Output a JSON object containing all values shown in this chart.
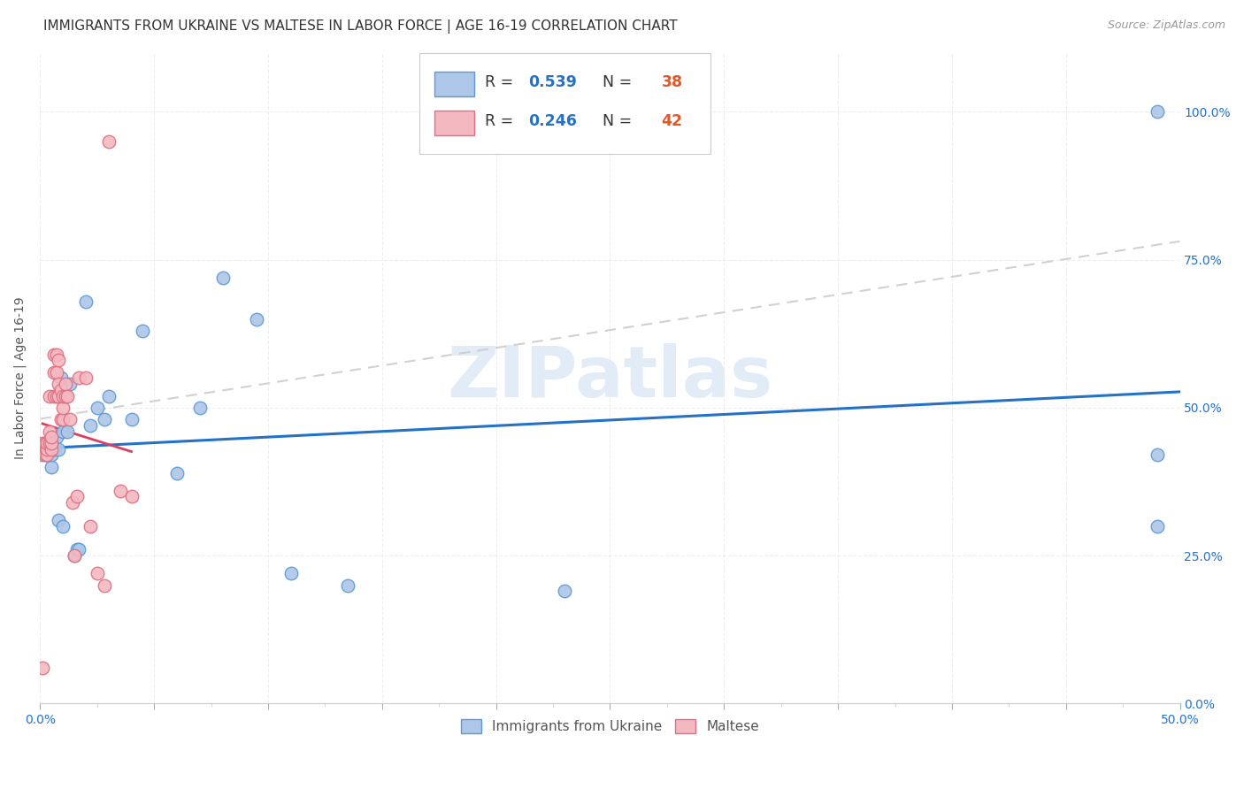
{
  "title": "IMMIGRANTS FROM UKRAINE VS MALTESE IN LABOR FORCE | AGE 16-19 CORRELATION CHART",
  "source": "Source: ZipAtlas.com",
  "ylabel": "In Labor Force | Age 16-19",
  "xlim": [
    0.0,
    0.5
  ],
  "ylim": [
    0.0,
    1.1
  ],
  "ytick_positions": [
    0.0,
    0.25,
    0.5,
    0.75,
    1.0
  ],
  "yticklabels_right": [
    "0.0%",
    "25.0%",
    "50.0%",
    "75.0%",
    "100.0%"
  ],
  "ukraine_color": "#aec6e8",
  "ukraine_edge": "#5b9bd5",
  "maltese_color": "#f4b8c1",
  "maltese_edge": "#e07080",
  "ukraine_R": 0.539,
  "ukraine_N": 38,
  "maltese_R": 0.246,
  "maltese_N": 42,
  "ukraine_line_color": "#2472c8",
  "maltese_line_color": "#d94060",
  "ref_line_color": "#cccccc",
  "legend_R_color": "#2472c8",
  "legend_N_color": "#e05a28",
  "ukraine_x": [
    0.001,
    0.002,
    0.003,
    0.003,
    0.004,
    0.004,
    0.005,
    0.005,
    0.005,
    0.006,
    0.007,
    0.008,
    0.008,
    0.009,
    0.01,
    0.01,
    0.012,
    0.013,
    0.015,
    0.016,
    0.017,
    0.02,
    0.022,
    0.025,
    0.028,
    0.03,
    0.04,
    0.045,
    0.06,
    0.07,
    0.08,
    0.095,
    0.11,
    0.135,
    0.23,
    0.49,
    0.49,
    0.49
  ],
  "ukraine_y": [
    0.42,
    0.43,
    0.42,
    0.44,
    0.43,
    0.44,
    0.4,
    0.42,
    0.44,
    0.43,
    0.45,
    0.31,
    0.43,
    0.55,
    0.3,
    0.46,
    0.46,
    0.54,
    0.25,
    0.26,
    0.26,
    0.68,
    0.47,
    0.5,
    0.48,
    0.52,
    0.48,
    0.63,
    0.39,
    0.5,
    0.72,
    0.65,
    0.22,
    0.2,
    0.19,
    1.0,
    0.42,
    0.3
  ],
  "maltese_x": [
    0.001,
    0.001,
    0.002,
    0.002,
    0.003,
    0.003,
    0.003,
    0.004,
    0.004,
    0.004,
    0.005,
    0.005,
    0.005,
    0.006,
    0.006,
    0.006,
    0.007,
    0.007,
    0.007,
    0.008,
    0.008,
    0.008,
    0.009,
    0.009,
    0.01,
    0.01,
    0.01,
    0.011,
    0.011,
    0.012,
    0.013,
    0.014,
    0.015,
    0.016,
    0.017,
    0.02,
    0.022,
    0.025,
    0.028,
    0.03,
    0.035,
    0.04
  ],
  "maltese_y": [
    0.06,
    0.44,
    0.42,
    0.44,
    0.42,
    0.43,
    0.44,
    0.44,
    0.46,
    0.52,
    0.43,
    0.44,
    0.45,
    0.52,
    0.56,
    0.59,
    0.52,
    0.56,
    0.59,
    0.52,
    0.54,
    0.58,
    0.48,
    0.53,
    0.48,
    0.5,
    0.52,
    0.52,
    0.54,
    0.52,
    0.48,
    0.34,
    0.25,
    0.35,
    0.55,
    0.55,
    0.3,
    0.22,
    0.2,
    0.95,
    0.36,
    0.35
  ],
  "background_color": "#ffffff",
  "grid_color": "#e8e8e8",
  "title_fontsize": 11,
  "axis_label_fontsize": 10,
  "tick_fontsize": 10
}
